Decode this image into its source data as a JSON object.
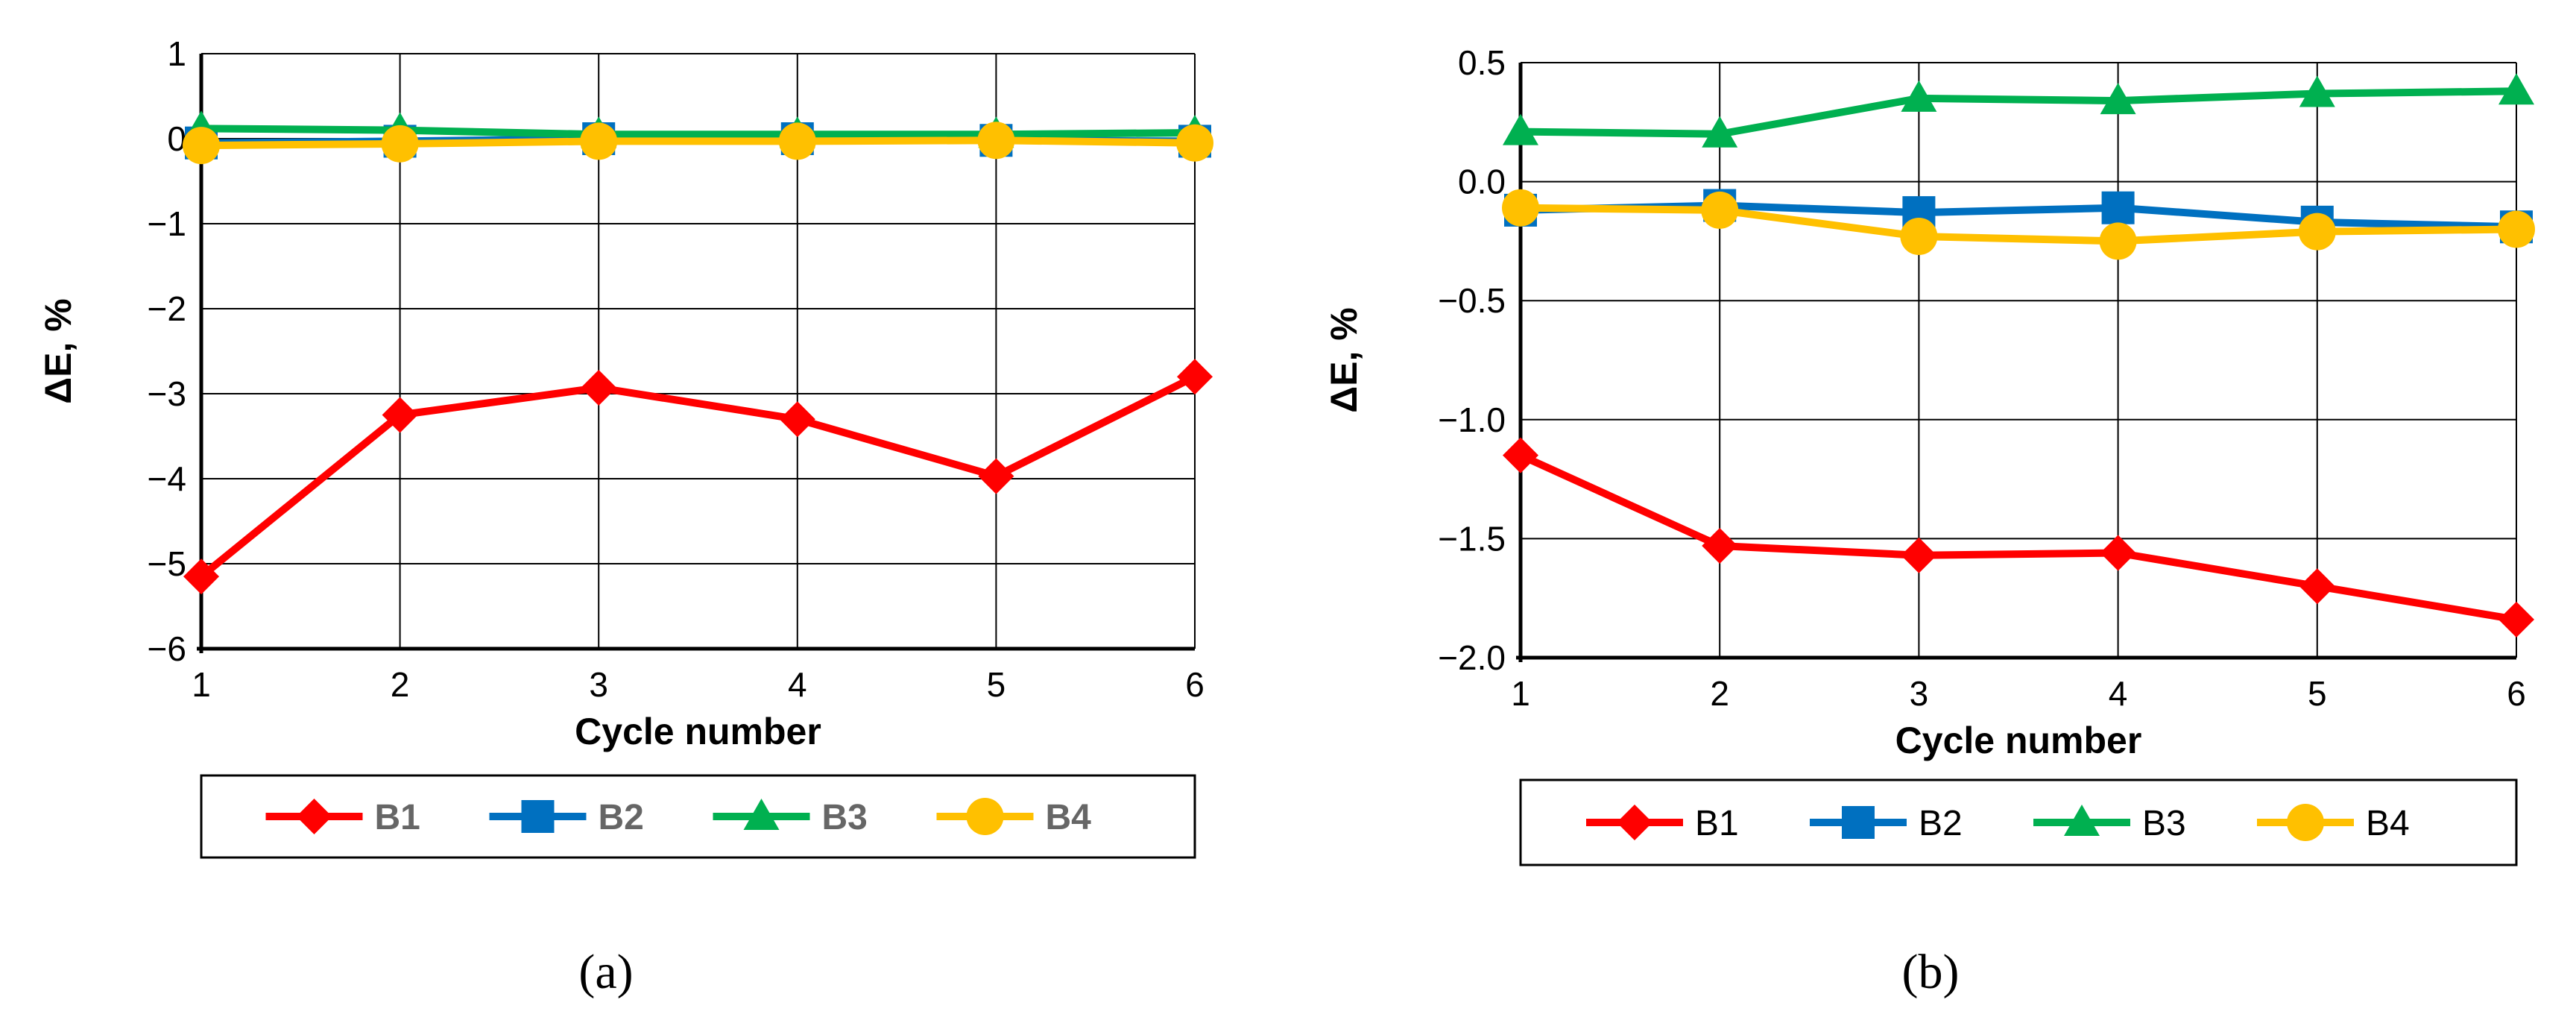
{
  "colors": {
    "B1": "#FF0000",
    "B2": "#0070C0",
    "B3": "#00B050",
    "B4": "#FFC000",
    "grid": "#000000"
  },
  "chart_data": [
    {
      "type": "line",
      "panel_label": "(a)",
      "xlabel": "Cycle number",
      "ylabel": "ΔE, %",
      "x": [
        1,
        2,
        3,
        4,
        5,
        6
      ],
      "ylim": [
        -6,
        1
      ],
      "yticks": [
        "1",
        "0",
        "−1",
        "−2",
        "−3",
        "−4",
        "−5",
        "−6"
      ],
      "ytick_values": [
        1,
        0,
        -1,
        -2,
        -3,
        -4,
        -5,
        -6
      ],
      "grid": true,
      "legend_position": "bottom",
      "legend_bold": true,
      "series": [
        {
          "name": "B1",
          "marker": "diamond",
          "values": [
            -5.15,
            -3.25,
            -2.93,
            -3.3,
            -3.97,
            -2.8
          ]
        },
        {
          "name": "B2",
          "marker": "square",
          "values": [
            -0.05,
            -0.03,
            0.0,
            0.0,
            -0.02,
            -0.03
          ]
        },
        {
          "name": "B3",
          "marker": "triangle",
          "values": [
            0.12,
            0.1,
            0.05,
            0.05,
            0.05,
            0.07
          ]
        },
        {
          "name": "B4",
          "marker": "circle",
          "values": [
            -0.08,
            -0.06,
            -0.03,
            -0.03,
            -0.02,
            -0.05
          ]
        }
      ]
    },
    {
      "type": "line",
      "panel_label": "(b)",
      "xlabel": "Cycle number",
      "ylabel": "ΔE, %",
      "x": [
        1,
        2,
        3,
        4,
        5,
        6
      ],
      "ylim": [
        -2.0,
        0.5
      ],
      "yticks": [
        "0.5",
        "0.0",
        "−0.5",
        "−1.0",
        "−1.5",
        "−2.0"
      ],
      "ytick_values": [
        0.5,
        0.0,
        -0.5,
        -1.0,
        -1.5,
        -2.0
      ],
      "grid": true,
      "legend_position": "bottom",
      "legend_bold": false,
      "series": [
        {
          "name": "B1",
          "marker": "diamond",
          "values": [
            -1.15,
            -1.53,
            -1.57,
            -1.56,
            -1.7,
            -1.84
          ]
        },
        {
          "name": "B2",
          "marker": "square",
          "values": [
            -0.12,
            -0.1,
            -0.13,
            -0.11,
            -0.17,
            -0.19
          ]
        },
        {
          "name": "B3",
          "marker": "triangle",
          "values": [
            0.21,
            0.2,
            0.35,
            0.34,
            0.37,
            0.38
          ]
        },
        {
          "name": "B4",
          "marker": "circle",
          "values": [
            -0.11,
            -0.12,
            -0.23,
            -0.25,
            -0.21,
            -0.2
          ]
        }
      ]
    }
  ]
}
